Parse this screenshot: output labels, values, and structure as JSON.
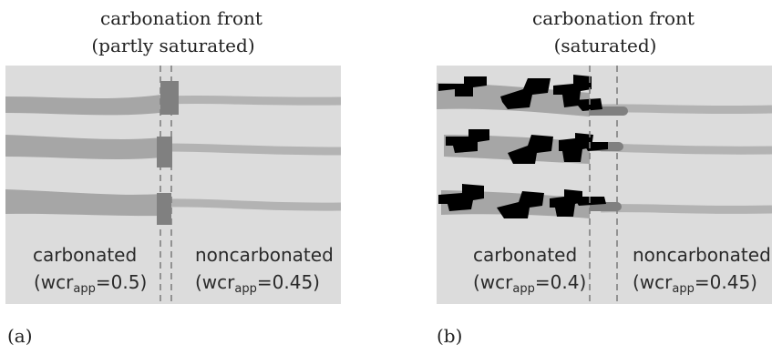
{
  "figure": {
    "panel_a": {
      "title_line1": "carbonation front",
      "title_line2": "(partly saturated)",
      "left_label": "carbonated",
      "left_wcr_prefix": "(wcr",
      "left_wcr_sub": "app",
      "left_wcr_value": "=0.5)",
      "right_label": "noncarbonated",
      "right_wcr_prefix": "(wcr",
      "right_wcr_sub": "app",
      "right_wcr_value": "=0.45)",
      "caption": "(a)"
    },
    "panel_b": {
      "title_line1": "carbonation front",
      "title_line2": "(saturated)",
      "left_label": "carbonated",
      "left_wcr_prefix": "(wcr",
      "left_wcr_sub": "app",
      "left_wcr_value": "=0.4)",
      "right_label": "noncarbonated",
      "right_wcr_prefix": "(wcr",
      "right_wcr_sub": "app",
      "right_wcr_value": "=0.45)",
      "caption": "(b)"
    }
  },
  "colors": {
    "panel_bg": "#dcdcdc",
    "pore_wide": "#a6a6a6",
    "pore_narrow": "#b3b3b3",
    "front_band": "#808080",
    "dashed_line": "#808080",
    "deposit": "#000000"
  }
}
